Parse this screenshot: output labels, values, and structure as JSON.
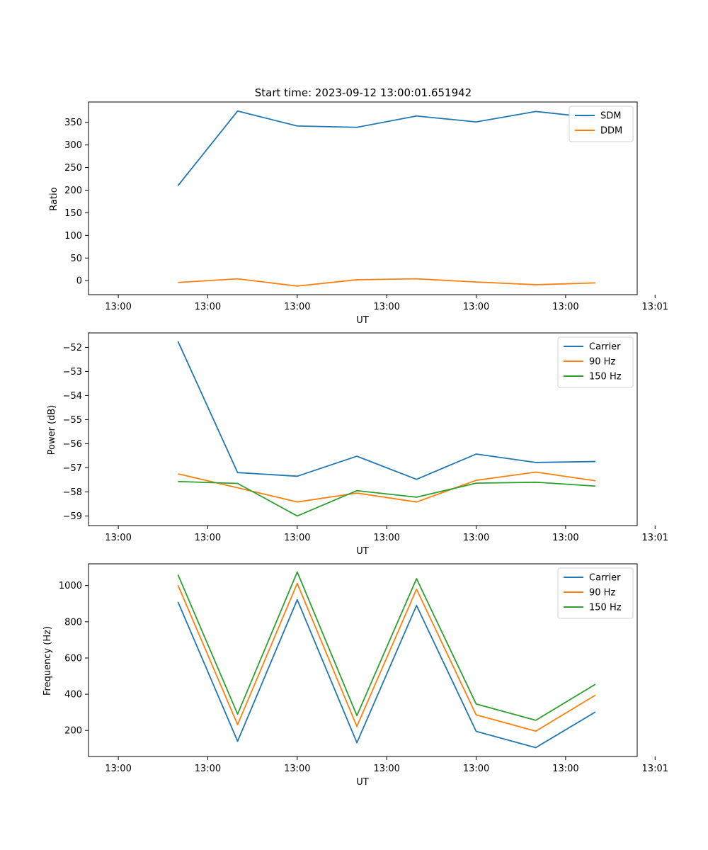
{
  "colors": {
    "c0": "#1f77b4",
    "c1": "#ff7f0e",
    "c2": "#2ca02c"
  },
  "chart_data": [
    {
      "type": "line",
      "title": "Start time: 2023-09-12 13:00:01.651942",
      "xlabel": "UT",
      "ylabel": "Ratio",
      "xlim": [
        -0.5,
        8.7
      ],
      "x": [
        1,
        2,
        3,
        4,
        5,
        6,
        7,
        8
      ],
      "xticks": [
        0,
        1.5,
        3,
        4.5,
        6,
        7.5,
        9
      ],
      "xtick_labels": [
        "13:00",
        "13:00",
        "13:00",
        "13:00",
        "13:00",
        "13:00",
        "13:01"
      ],
      "ylim": [
        -31,
        395
      ],
      "yticks": [
        0,
        50,
        100,
        150,
        200,
        250,
        300,
        350
      ],
      "ytick_labels": [
        "0",
        "50",
        "100",
        "150",
        "200",
        "250",
        "300",
        "350"
      ],
      "legend_position": "top-right",
      "series": [
        {
          "name": "SDM",
          "color": "#1f77b4",
          "values": [
            210,
            375,
            342,
            339,
            364,
            351,
            374,
            360
          ]
        },
        {
          "name": "DDM",
          "color": "#ff7f0e",
          "values": [
            -4,
            4,
            -12,
            2,
            4,
            -3,
            -9,
            -5
          ]
        }
      ]
    },
    {
      "type": "line",
      "title": "",
      "xlabel": "UT",
      "ylabel": "Power (dB)",
      "xlim": [
        -0.5,
        8.7
      ],
      "x": [
        1,
        2,
        3,
        4,
        5,
        6,
        7,
        8
      ],
      "xticks": [
        0,
        1.5,
        3,
        4.5,
        6,
        7.5,
        9
      ],
      "xtick_labels": [
        "13:00",
        "13:00",
        "13:00",
        "13:00",
        "13:00",
        "13:00",
        "13:01"
      ],
      "ylim": [
        -59.4,
        -51.4
      ],
      "yticks": [
        -59,
        -58,
        -57,
        -56,
        -55,
        -54,
        -53,
        -52
      ],
      "ytick_labels": [
        "−59",
        "−58",
        "−57",
        "−56",
        "−55",
        "−54",
        "−53",
        "−52"
      ],
      "legend_position": "top-right",
      "series": [
        {
          "name": "Carrier",
          "color": "#1f77b4",
          "values": [
            -51.75,
            -57.2,
            -57.35,
            -56.52,
            -57.48,
            -56.43,
            -56.78,
            -56.74
          ]
        },
        {
          "name": "90 Hz",
          "color": "#ff7f0e",
          "values": [
            -57.25,
            -57.83,
            -58.42,
            -58.05,
            -58.42,
            -57.52,
            -57.18,
            -57.54
          ]
        },
        {
          "name": "150 Hz",
          "color": "#2ca02c",
          "values": [
            -57.57,
            -57.65,
            -59.0,
            -57.95,
            -58.22,
            -57.64,
            -57.6,
            -57.76
          ]
        }
      ]
    },
    {
      "type": "line",
      "title": "",
      "xlabel": "UT",
      "ylabel": "Frequency (Hz)",
      "xlim": [
        -0.5,
        8.7
      ],
      "x": [
        1,
        2,
        3,
        4,
        5,
        6,
        7,
        8
      ],
      "xticks": [
        0,
        1.5,
        3,
        4.5,
        6,
        7.5,
        9
      ],
      "xtick_labels": [
        "13:00",
        "13:00",
        "13:00",
        "13:00",
        "13:00",
        "13:00",
        "13:01"
      ],
      "ylim": [
        56,
        1120
      ],
      "yticks": [
        200,
        400,
        600,
        800,
        1000
      ],
      "ytick_labels": [
        "200",
        "400",
        "600",
        "800",
        "1000"
      ],
      "legend_position": "top-right",
      "series": [
        {
          "name": "Carrier",
          "color": "#1f77b4",
          "values": [
            910,
            140,
            922,
            132,
            890,
            195,
            105,
            302
          ]
        },
        {
          "name": "90 Hz",
          "color": "#ff7f0e",
          "values": [
            1002,
            232,
            1012,
            222,
            980,
            286,
            196,
            395
          ]
        },
        {
          "name": "150 Hz",
          "color": "#2ca02c",
          "values": [
            1060,
            290,
            1075,
            282,
            1038,
            346,
            256,
            455
          ]
        }
      ]
    }
  ]
}
